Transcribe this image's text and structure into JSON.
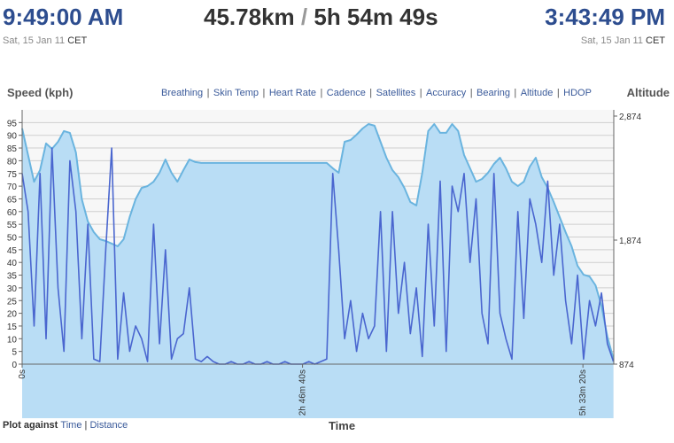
{
  "header": {
    "start_time": "9:49:00 AM",
    "start_date": "Sat, 15 Jan 11",
    "start_zone": "CET",
    "distance": "45.78km",
    "divider": "/",
    "duration": "5h 54m 49s",
    "end_time": "3:43:49 PM",
    "end_date": "Sat, 15 Jan 11",
    "end_zone": "CET"
  },
  "separator": "|",
  "overlay_links": [
    "Breathing",
    "Skin Temp",
    "Heart Rate",
    "Cadence",
    "Satellites",
    "Accuracy",
    "Bearing",
    "Altitude",
    "HDOP"
  ],
  "plot_against": {
    "label": "Plot against",
    "options": [
      "Time",
      "Distance"
    ]
  },
  "chart_data": {
    "type": "line",
    "y_label": "Speed (kph)",
    "y2_label": "Altitude",
    "x_label": "Time",
    "xlim": [
      0,
      21100
    ],
    "xticks": [
      {
        "value": 0,
        "label": "0s"
      },
      {
        "value": 10000,
        "label": "2h 46m 40s"
      },
      {
        "value": 20000,
        "label": "5h 33m 20s"
      }
    ],
    "ylim": [
      0,
      100
    ],
    "yticks": [
      0,
      5,
      10,
      15,
      20,
      25,
      30,
      35,
      40,
      45,
      50,
      55,
      60,
      65,
      70,
      75,
      80,
      85,
      90,
      95
    ],
    "y2lim": [
      874,
      2924
    ],
    "y2ticks": [
      874,
      {
        "value": 1874,
        "label": "1,874"
      },
      {
        "value": 2874,
        "label": "2,874"
      }
    ],
    "grid": true,
    "x": [
      0,
      213,
      426,
      639,
      852,
      1065,
      1278,
      1491,
      1704,
      1917,
      2130,
      2343,
      2556,
      2769,
      2982,
      3195,
      3408,
      3621,
      3834,
      4047,
      4260,
      4473,
      4686,
      4899,
      5112,
      5325,
      5538,
      5751,
      5964,
      6177,
      6390,
      6603,
      6816,
      7029,
      7242,
      7455,
      7668,
      7881,
      8094,
      8307,
      8520,
      8733,
      8946,
      9159,
      9372,
      9585,
      9798,
      10011,
      10224,
      10437,
      10650,
      10863,
      11076,
      11289,
      11502,
      11715,
      11928,
      12141,
      12354,
      12567,
      12780,
      12993,
      13206,
      13419,
      13632,
      13845,
      14058,
      14271,
      14484,
      14697,
      14910,
      15123,
      15336,
      15549,
      15762,
      15975,
      16188,
      16401,
      16614,
      16827,
      17040,
      17253,
      17466,
      17679,
      17892,
      18105,
      18318,
      18531,
      18744,
      18957,
      19170,
      19383,
      19596,
      19809,
      20022,
      20235,
      20448,
      20661,
      20874,
      21087
    ],
    "series": [
      {
        "name": "Altitude",
        "color": "#6ab4df",
        "fill": "#b9ddf5",
        "axis": "y2",
        "values": [
          2774,
          2560,
          2345,
          2438,
          2653,
          2610,
          2667,
          2753,
          2739,
          2581,
          2203,
          2024,
          1938,
          1881,
          1867,
          1846,
          1824,
          1881,
          2060,
          2203,
          2295,
          2310,
          2345,
          2417,
          2524,
          2417,
          2345,
          2438,
          2524,
          2503,
          2496,
          2496,
          2496,
          2496,
          2496,
          2496,
          2496,
          2496,
          2496,
          2496,
          2496,
          2496,
          2496,
          2496,
          2496,
          2496,
          2496,
          2496,
          2496,
          2496,
          2496,
          2496,
          2453,
          2417,
          2667,
          2681,
          2724,
          2774,
          2810,
          2796,
          2667,
          2538,
          2438,
          2381,
          2295,
          2181,
          2153,
          2417,
          2753,
          2810,
          2739,
          2739,
          2810,
          2753,
          2560,
          2453,
          2345,
          2367,
          2417,
          2488,
          2538,
          2453,
          2345,
          2310,
          2345,
          2467,
          2538,
          2381,
          2295,
          2181,
          2060,
          1938,
          1824,
          1667,
          1595,
          1581,
          1510,
          1345,
          1095,
          917
        ]
      },
      {
        "name": "Speed",
        "color": "#4a66cf",
        "values": [
          75,
          60,
          15,
          75,
          10,
          85,
          30,
          5,
          80,
          60,
          10,
          55,
          2,
          1,
          45,
          85,
          2,
          28,
          5,
          15,
          10,
          1,
          55,
          8,
          45,
          2,
          10,
          12,
          30,
          2,
          1,
          3,
          1,
          0,
          0,
          1,
          0,
          0,
          1,
          0,
          0,
          1,
          0,
          0,
          1,
          0,
          0,
          0,
          1,
          0,
          1,
          2,
          75,
          45,
          10,
          25,
          5,
          20,
          10,
          15,
          60,
          5,
          60,
          20,
          40,
          12,
          30,
          3,
          55,
          15,
          72,
          5,
          70,
          60,
          75,
          40,
          65,
          20,
          8,
          75,
          20,
          10,
          2,
          60,
          18,
          65,
          55,
          40,
          72,
          35,
          55,
          25,
          8,
          35,
          2,
          25,
          15,
          28,
          8,
          1
        ]
      }
    ]
  }
}
